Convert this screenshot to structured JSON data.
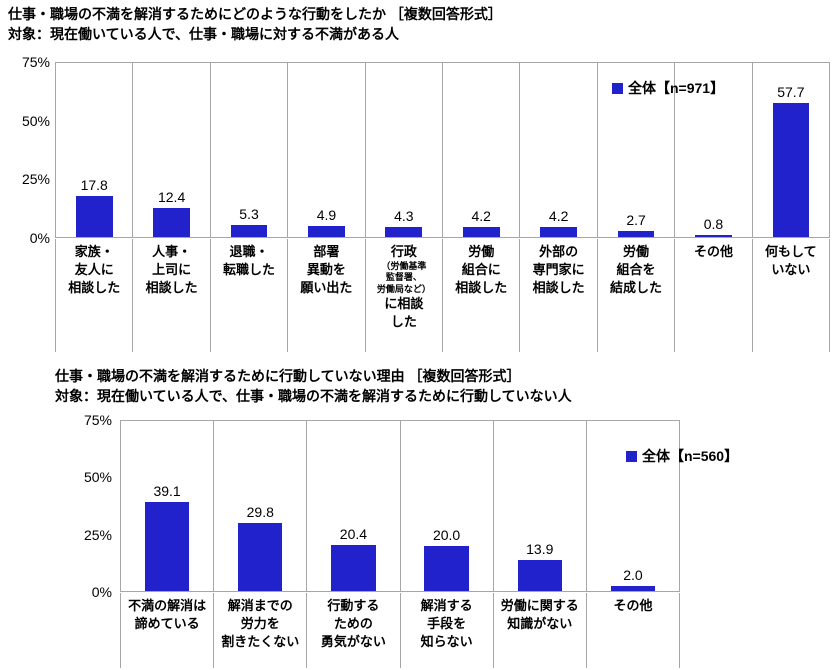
{
  "page": {
    "background": "#ffffff"
  },
  "chart_data": [
    {
      "type": "bar",
      "title": "仕事・職場の不満を解消するためにどのような行動をしたか ［複数回答形式］",
      "subtitle": "対象：現在働いている人で、仕事・職場に対する不満がある人",
      "legend": "全体【n=971】",
      "bar_color": "#2222CC",
      "ylim": [
        0,
        75
      ],
      "yticks": [
        0,
        25,
        50,
        75
      ],
      "ytick_labels": [
        "0%",
        "25%",
        "50%",
        "75%"
      ],
      "grid": false,
      "legend_position": "top-right-inside",
      "categories": [
        "家族・友人に相談した",
        "人事・上司に相談した",
        "退職・転職した",
        "部署異動を願い出た",
        "行政（労働基準監督署、労働局など）に相談した",
        "労働組合に相談した",
        "外部の専門家に相談した",
        "労働組合を結成した",
        "その他",
        "何もしていない"
      ],
      "label_lines": [
        [
          "家族・",
          "友人に",
          "相談した"
        ],
        [
          "人事・",
          "上司に",
          "相談した"
        ],
        [
          "退職・",
          "転職した"
        ],
        [
          "部署",
          "異動を",
          "願い出た"
        ],
        [
          "行政",
          {
            "text": "（労働基準",
            "small": true
          },
          {
            "text": "監督署、",
            "small": true
          },
          {
            "text": "労働局など）",
            "small": true
          },
          "に相談",
          "した"
        ],
        [
          "労働",
          "組合に",
          "相談した"
        ],
        [
          "外部の",
          "専門家に",
          "相談した"
        ],
        [
          "労働",
          "組合を",
          "結成した"
        ],
        [
          "その他"
        ],
        [
          "何もして",
          "いない"
        ]
      ],
      "values": [
        17.8,
        12.4,
        5.3,
        4.9,
        4.3,
        4.2,
        4.2,
        2.7,
        0.8,
        57.7
      ]
    },
    {
      "type": "bar",
      "title": "仕事・職場の不満を解消するために行動していない理由 ［複数回答形式］",
      "subtitle": "対象：現在働いている人で、仕事・職場の不満を解消するために行動していない人",
      "legend": "全体【n=560】",
      "bar_color": "#2222CC",
      "ylim": [
        0,
        75
      ],
      "yticks": [
        0,
        25,
        50,
        75
      ],
      "ytick_labels": [
        "0%",
        "25%",
        "50%",
        "75%"
      ],
      "grid": false,
      "legend_position": "top-right-inside",
      "categories": [
        "不満の解消は諦めている",
        "解消までの労力を割きたくない",
        "行動するための勇気がない",
        "解消する手段を知らない",
        "労働に関する知識がない",
        "その他"
      ],
      "label_lines": [
        [
          "不満の解消は",
          "諦めている"
        ],
        [
          "解消までの",
          "労力を",
          "割きたくない"
        ],
        [
          "行動する",
          "ための",
          "勇気がない"
        ],
        [
          "解消する",
          "手段を",
          "知らない"
        ],
        [
          "労働に関する",
          "知識がない"
        ],
        [
          "その他"
        ]
      ],
      "values": [
        39.1,
        29.8,
        20.4,
        20.0,
        13.9,
        2.0
      ]
    }
  ]
}
